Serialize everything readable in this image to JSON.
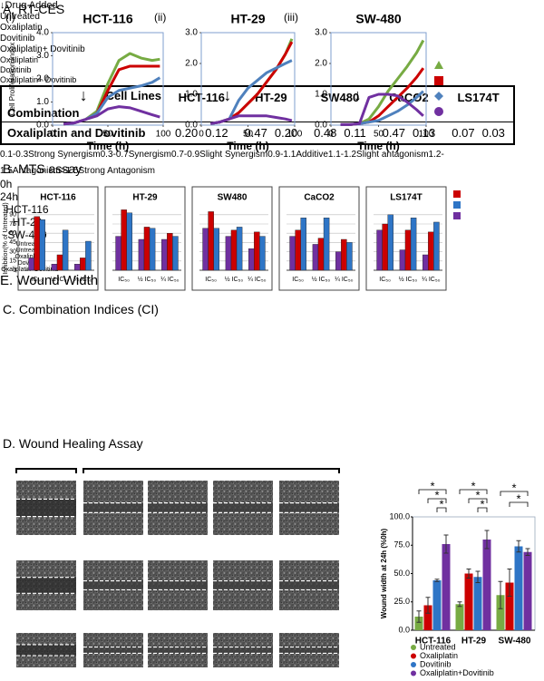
{
  "panel_titles": {
    "a": "A. RT-CES",
    "b": "B. MTS assay",
    "c": "C. Combination Indices (CI)",
    "d": "D. Wound Healing Assay"
  },
  "chart_data": [
    {
      "type": "line",
      "panel": "(i)",
      "title": "HCT-116",
      "xlabel": "Time (h)",
      "ylabel": "Cell Proliferation Index",
      "legend_title": "↓Drug Added",
      "x": [
        10,
        20,
        30,
        40,
        50,
        60,
        70,
        80,
        90,
        97
      ],
      "xlim": [
        0,
        100
      ],
      "xticks": [
        0,
        50,
        100
      ],
      "ylim": [
        0,
        4
      ],
      "yticks": [
        {
          "value": 0,
          "label": "0.0"
        },
        {
          "value": 1,
          "label": "1.0"
        },
        {
          "value": 2,
          "label": "2.0"
        },
        {
          "value": 3,
          "label": "3.0"
        },
        {
          "value": 4,
          "label": "4.0"
        }
      ],
      "annotations": [
        {
          "text": "↓",
          "x": 28
        }
      ],
      "series": [
        {
          "name": "Untreated",
          "color": "#77ab43",
          "marker": "triangle",
          "values": [
            0.05,
            0.1,
            0.25,
            0.6,
            1.8,
            2.8,
            3.1,
            2.9,
            2.8,
            2.85
          ]
        },
        {
          "name": "Oxaliplatin",
          "color": "#cc0000",
          "marker": "square",
          "values": [
            0.05,
            0.1,
            0.25,
            0.5,
            1.5,
            2.4,
            2.55,
            2.55,
            2.55,
            2.55
          ]
        },
        {
          "name": "Dovitinib",
          "color": "#4f81bd",
          "marker": "diamond",
          "values": [
            0.05,
            0.1,
            0.25,
            0.5,
            1.2,
            1.5,
            1.6,
            1.7,
            1.85,
            2.05
          ]
        },
        {
          "name": "Oxaliplatin+ Dovitinib",
          "color": "#7030a0",
          "marker": "circle",
          "values": [
            0.05,
            0.1,
            0.25,
            0.4,
            0.7,
            0.8,
            0.75,
            0.6,
            0.45,
            0.35
          ]
        }
      ]
    },
    {
      "type": "line",
      "panel": "(ii)",
      "title": "HT-29",
      "xlabel": "Time (h)",
      "x": [
        10,
        20,
        30,
        40,
        50,
        60,
        70,
        80,
        90,
        97
      ],
      "xlim": [
        0,
        100
      ],
      "xticks": [
        0,
        50,
        100
      ],
      "ylim": [
        0,
        3
      ],
      "yticks": [
        {
          "value": 0,
          "label": "0.0"
        },
        {
          "value": 1,
          "label": "1.0"
        },
        {
          "value": 2,
          "label": "2.0"
        },
        {
          "value": 3,
          "label": "3.0"
        }
      ],
      "annotations": [
        {
          "text": "↓",
          "x": 28
        }
      ],
      "series": [
        {
          "name": "Untreated",
          "color": "#77ab43",
          "values": [
            0.05,
            0.1,
            0.2,
            0.4,
            0.7,
            1.0,
            1.4,
            1.8,
            2.3,
            2.8
          ]
        },
        {
          "name": "Oxaliplatin",
          "color": "#cc0000",
          "values": [
            0.05,
            0.1,
            0.2,
            0.4,
            0.7,
            1.0,
            1.4,
            1.8,
            2.3,
            2.7
          ]
        },
        {
          "name": "Dovitinib",
          "color": "#4f81bd",
          "values": [
            0.05,
            0.1,
            0.2,
            0.8,
            1.2,
            1.45,
            1.7,
            1.85,
            2.0,
            2.1
          ]
        },
        {
          "name": "Oxaliplatin+ Dovitinib",
          "color": "#7030a0",
          "values": [
            0.05,
            0.1,
            0.2,
            0.3,
            0.3,
            0.3,
            0.3,
            0.25,
            0.2,
            0.15
          ]
        }
      ]
    },
    {
      "type": "line",
      "panel": "(iii)",
      "title": "SW-480",
      "xlabel": "Time (h)",
      "x": [
        10,
        20,
        30,
        40,
        50,
        60,
        70,
        80,
        90,
        97
      ],
      "xlim": [
        0,
        100
      ],
      "xticks": [
        0,
        50,
        100
      ],
      "ylim": [
        0,
        3
      ],
      "yticks": [
        {
          "value": 0,
          "label": "0.0"
        },
        {
          "value": 1,
          "label": "1.0"
        },
        {
          "value": 2,
          "label": "2.0"
        },
        {
          "value": 3,
          "label": "3.0"
        }
      ],
      "annotations": [
        {
          "text": "↓",
          "x": 28
        }
      ],
      "series": [
        {
          "name": "Untreated",
          "color": "#77ab43",
          "values": [
            0.02,
            0.02,
            0.05,
            0.2,
            0.6,
            1.1,
            1.5,
            1.9,
            2.35,
            2.75
          ]
        },
        {
          "name": "Oxaliplatin",
          "color": "#cc0000",
          "values": [
            0.02,
            0.02,
            0.05,
            0.1,
            0.3,
            0.6,
            0.9,
            1.2,
            1.55,
            1.85
          ]
        },
        {
          "name": "Dovitinib",
          "color": "#4f81bd",
          "values": [
            0.02,
            0.02,
            0.05,
            0.1,
            0.15,
            0.3,
            0.45,
            0.65,
            0.9,
            1.1
          ]
        },
        {
          "name": "Oxaliplatin+ Dovitinib",
          "color": "#7030a0",
          "values": [
            0.02,
            0.02,
            0.05,
            0.9,
            1.0,
            1.0,
            0.95,
            0.75,
            0.5,
            0.3
          ]
        }
      ]
    },
    {
      "type": "bar",
      "title": "HCT-116",
      "ylabel": "Inhibition(% of Untreated)",
      "grid": true,
      "categories": [
        "IC₅₀",
        "½ IC₅₀",
        "¼ IC₅₀"
      ],
      "ylim": [
        0,
        100
      ],
      "yticks": [
        0,
        15,
        30,
        45,
        60,
        75,
        90
      ],
      "series": [
        {
          "name": "Oxaliplatin",
          "color": "#cc0000",
          "values": [
            87,
            25,
            20
          ]
        },
        {
          "name": "Dovitinib",
          "color": "#2e75c6",
          "values": [
            82,
            65,
            47
          ]
        },
        {
          "name": "Oxaliplatin+ Dovitinib",
          "color": "#7030a0",
          "values": [
            20,
            10,
            10
          ]
        }
      ]
    },
    {
      "type": "bar",
      "title": "HT-29",
      "grid": true,
      "categories": [
        "IC₅₀",
        "½ IC₅₀",
        "¼ IC₅₀"
      ],
      "ylim": [
        0,
        100
      ],
      "series": [
        {
          "name": "Oxaliplatin",
          "color": "#cc0000",
          "values": [
            98,
            70,
            60
          ]
        },
        {
          "name": "Dovitinib",
          "color": "#2e75c6",
          "values": [
            93,
            68,
            55
          ]
        },
        {
          "name": "Oxaliplatin+ Dovitinib",
          "color": "#7030a0",
          "values": [
            55,
            50,
            50
          ]
        }
      ]
    },
    {
      "type": "bar",
      "title": "SW480",
      "grid": true,
      "categories": [
        "IC₅₀",
        "½ IC₅₀",
        "¼ IC₅₀"
      ],
      "ylim": [
        0,
        100
      ],
      "series": [
        {
          "name": "Oxaliplatin",
          "color": "#cc0000",
          "values": [
            95,
            65,
            62
          ]
        },
        {
          "name": "Dovitinib",
          "color": "#2e75c6",
          "values": [
            68,
            70,
            55
          ]
        },
        {
          "name": "Oxaliplatin+ Dovitinib",
          "color": "#7030a0",
          "values": [
            68,
            55,
            35
          ]
        }
      ]
    },
    {
      "type": "bar",
      "title": "CaCO2",
      "grid": true,
      "categories": [
        "IC₅₀",
        "½ IC₅₀",
        "¼ IC₅₀"
      ],
      "ylim": [
        0,
        100
      ],
      "series": [
        {
          "name": "Oxaliplatin",
          "color": "#cc0000",
          "values": [
            65,
            52,
            50
          ]
        },
        {
          "name": "Dovitinib",
          "color": "#2e75c6",
          "values": [
            85,
            85,
            45
          ]
        },
        {
          "name": "Oxaliplatin+ Dovitinib",
          "color": "#7030a0",
          "values": [
            55,
            42,
            30
          ]
        }
      ]
    },
    {
      "type": "bar",
      "title": "LS174T",
      "grid": true,
      "categories": [
        "IC₅₀",
        "½ IC₅₀",
        "¼ IC₅₀"
      ],
      "ylim": [
        0,
        100
      ],
      "series": [
        {
          "name": "Oxaliplatin",
          "color": "#cc0000",
          "values": [
            75,
            65,
            62
          ]
        },
        {
          "name": "Dovitinib",
          "color": "#2e75c6",
          "values": [
            90,
            85,
            78
          ]
        },
        {
          "name": "Oxaliplatin+ Dovitinib",
          "color": "#7030a0",
          "values": [
            65,
            33,
            25
          ]
        }
      ]
    },
    {
      "type": "bar",
      "title": "E. Wound Width",
      "ylabel": "Wound width at 24h (%0h)",
      "categories": [
        "HCT-116",
        "HT-29",
        "SW-480"
      ],
      "ylim": [
        0,
        100
      ],
      "yticks": [
        {
          "value": 0,
          "label": "0.0"
        },
        {
          "value": 25,
          "label": "25.0"
        },
        {
          "value": 50,
          "label": "50.0"
        },
        {
          "value": 75,
          "label": "75.0"
        },
        {
          "value": 100,
          "label": "100.0"
        }
      ],
      "annotations": [
        "*",
        "*",
        "*",
        "*",
        "*",
        "*",
        "*",
        "*"
      ],
      "series": [
        {
          "name": "Untreated",
          "color": "#77ab43",
          "values": [
            12,
            23,
            31
          ],
          "errors": [
            5,
            2,
            12
          ]
        },
        {
          "name": "Oxaliplatin",
          "color": "#cc0000",
          "values": [
            22,
            50,
            42
          ],
          "errors": [
            7,
            4,
            12
          ]
        },
        {
          "name": "Dovitinib",
          "color": "#2e75c6",
          "values": [
            44,
            47,
            74
          ],
          "errors": [
            1,
            5,
            5
          ]
        },
        {
          "name": "Oxaliplatin+Dovitinib",
          "color": "#7030a0",
          "values": [
            76,
            80,
            69
          ],
          "errors": [
            8,
            8,
            3
          ]
        }
      ]
    }
  ],
  "ci_table": {
    "header_cell_lines": "Cell Lines",
    "header_combination": "Combination",
    "columns": [
      "HCT-116",
      "HT-29",
      "SW480",
      "CaCO2",
      "LS174T"
    ],
    "row_label": "Oxaliplatin and Dovitinib",
    "values": [
      [
        "0.20",
        "0.12"
      ],
      [
        "0.47",
        "0.20"
      ],
      [
        "0.48",
        "0.11"
      ],
      [
        "0.47",
        "0.13"
      ],
      [
        "0.07",
        "0.03"
      ]
    ]
  },
  "ci_legend": [
    [
      "0.1-0.3",
      "Strong Synergism"
    ],
    [
      "0.3-0.7",
      "Synergism"
    ],
    [
      "0.7-0.9",
      "Slight Synergism"
    ],
    [
      "0.9-1.1",
      "Additive"
    ],
    [
      "1.1-1.2",
      "Slight antagonism"
    ],
    [
      "1.2-1.5",
      "Antagonism"
    ],
    [
      ">1.5",
      "Strong Antagonism"
    ]
  ],
  "wound": {
    "time_labels": [
      "0h",
      "24h"
    ],
    "columns": [
      "Untreated",
      "Untreated",
      "Oxaliplatin",
      "Dovitinib",
      "Oxaliplatin+Dovitinib"
    ],
    "rows": [
      "HCT-116",
      "HT-29",
      "SW-480"
    ]
  }
}
